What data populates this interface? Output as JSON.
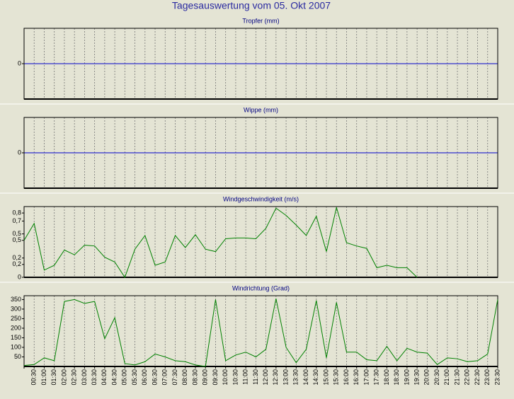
{
  "title": "Tagesauswertung vom 05. Okt 2007",
  "chart_data": [
    {
      "type": "line",
      "title": "Tropfer (mm)",
      "ylim": [
        -1,
        1
      ],
      "yticks": [
        0
      ],
      "zero_line_color": "#0000cc",
      "series": []
    },
    {
      "type": "line",
      "title": "Wippe (mm)",
      "ylim": [
        -1,
        1
      ],
      "yticks": [
        0
      ],
      "zero_line_color": "#0000cc",
      "series": []
    },
    {
      "type": "line",
      "title": "Windgeschwindigkeit (m/s)",
      "ylim": [
        0,
        0.88
      ],
      "yticks": [
        0,
        {
          "value": 0.16,
          "label": "0,2"
        },
        {
          "value": 0.24,
          "label": "0,2"
        },
        {
          "value": 0.46,
          "label": "0,5"
        },
        {
          "value": 0.54,
          "label": "0,5"
        },
        {
          "value": 0.7,
          "label": "0,7"
        },
        {
          "value": 0.8,
          "label": "0,8"
        }
      ],
      "series": [
        {
          "color": "#008000",
          "values": [
            0.46,
            0.67,
            0.09,
            0.15,
            0.34,
            0.28,
            0.4,
            0.39,
            0.25,
            0.19,
            0,
            0.35,
            0.52,
            0.15,
            0.19,
            0.52,
            0.37,
            0.53,
            0.35,
            0.32,
            0.48,
            0.49,
            0.49,
            0.48,
            0.61,
            0.86,
            0.77,
            0.65,
            0.52,
            0.76,
            0.32,
            0.87,
            0.43,
            0.39,
            0.36,
            0.12,
            0.15,
            0.12,
            0.12,
            0,
            null,
            null,
            null,
            null,
            null,
            null,
            null,
            null
          ]
        }
      ]
    },
    {
      "type": "line",
      "title": "Windrichtung (Grad)",
      "ylim": [
        0,
        370
      ],
      "yticks": [
        50,
        100,
        150,
        200,
        250,
        300,
        350
      ],
      "categories": [
        null,
        "00:30",
        "01:00",
        "01:30",
        "02:00",
        "02:30",
        "03:00",
        "03:30",
        "04:00",
        "04:30",
        "05:00",
        "05:30",
        "06:00",
        "06:30",
        "07:00",
        "07:30",
        "08:00",
        "08:30",
        "09:00",
        "09:30",
        "10:00",
        "10:30",
        "11:00",
        "11:30",
        "12:00",
        "12:30",
        "13:00",
        "13:30",
        "14:00",
        "14:30",
        "15:00",
        "15:30",
        "16:00",
        "16:30",
        "17:00",
        "17:30",
        "18:00",
        "18:30",
        "19:00",
        "19:30",
        "20:00",
        "20:30",
        "21:00",
        "21:30",
        "22:00",
        "22:30",
        "23:00",
        "23:30"
      ],
      "series": [
        {
          "color": "#008000",
          "values": [
            5,
            10,
            45,
            30,
            340,
            350,
            330,
            340,
            145,
            255,
            15,
            8,
            25,
            65,
            50,
            30,
            25,
            8,
            0,
            350,
            30,
            60,
            75,
            50,
            90,
            355,
            100,
            20,
            90,
            345,
            45,
            335,
            75,
            75,
            35,
            30,
            105,
            30,
            95,
            75,
            70,
            10,
            45,
            40,
            25,
            30,
            65,
            350
          ]
        }
      ]
    }
  ]
}
